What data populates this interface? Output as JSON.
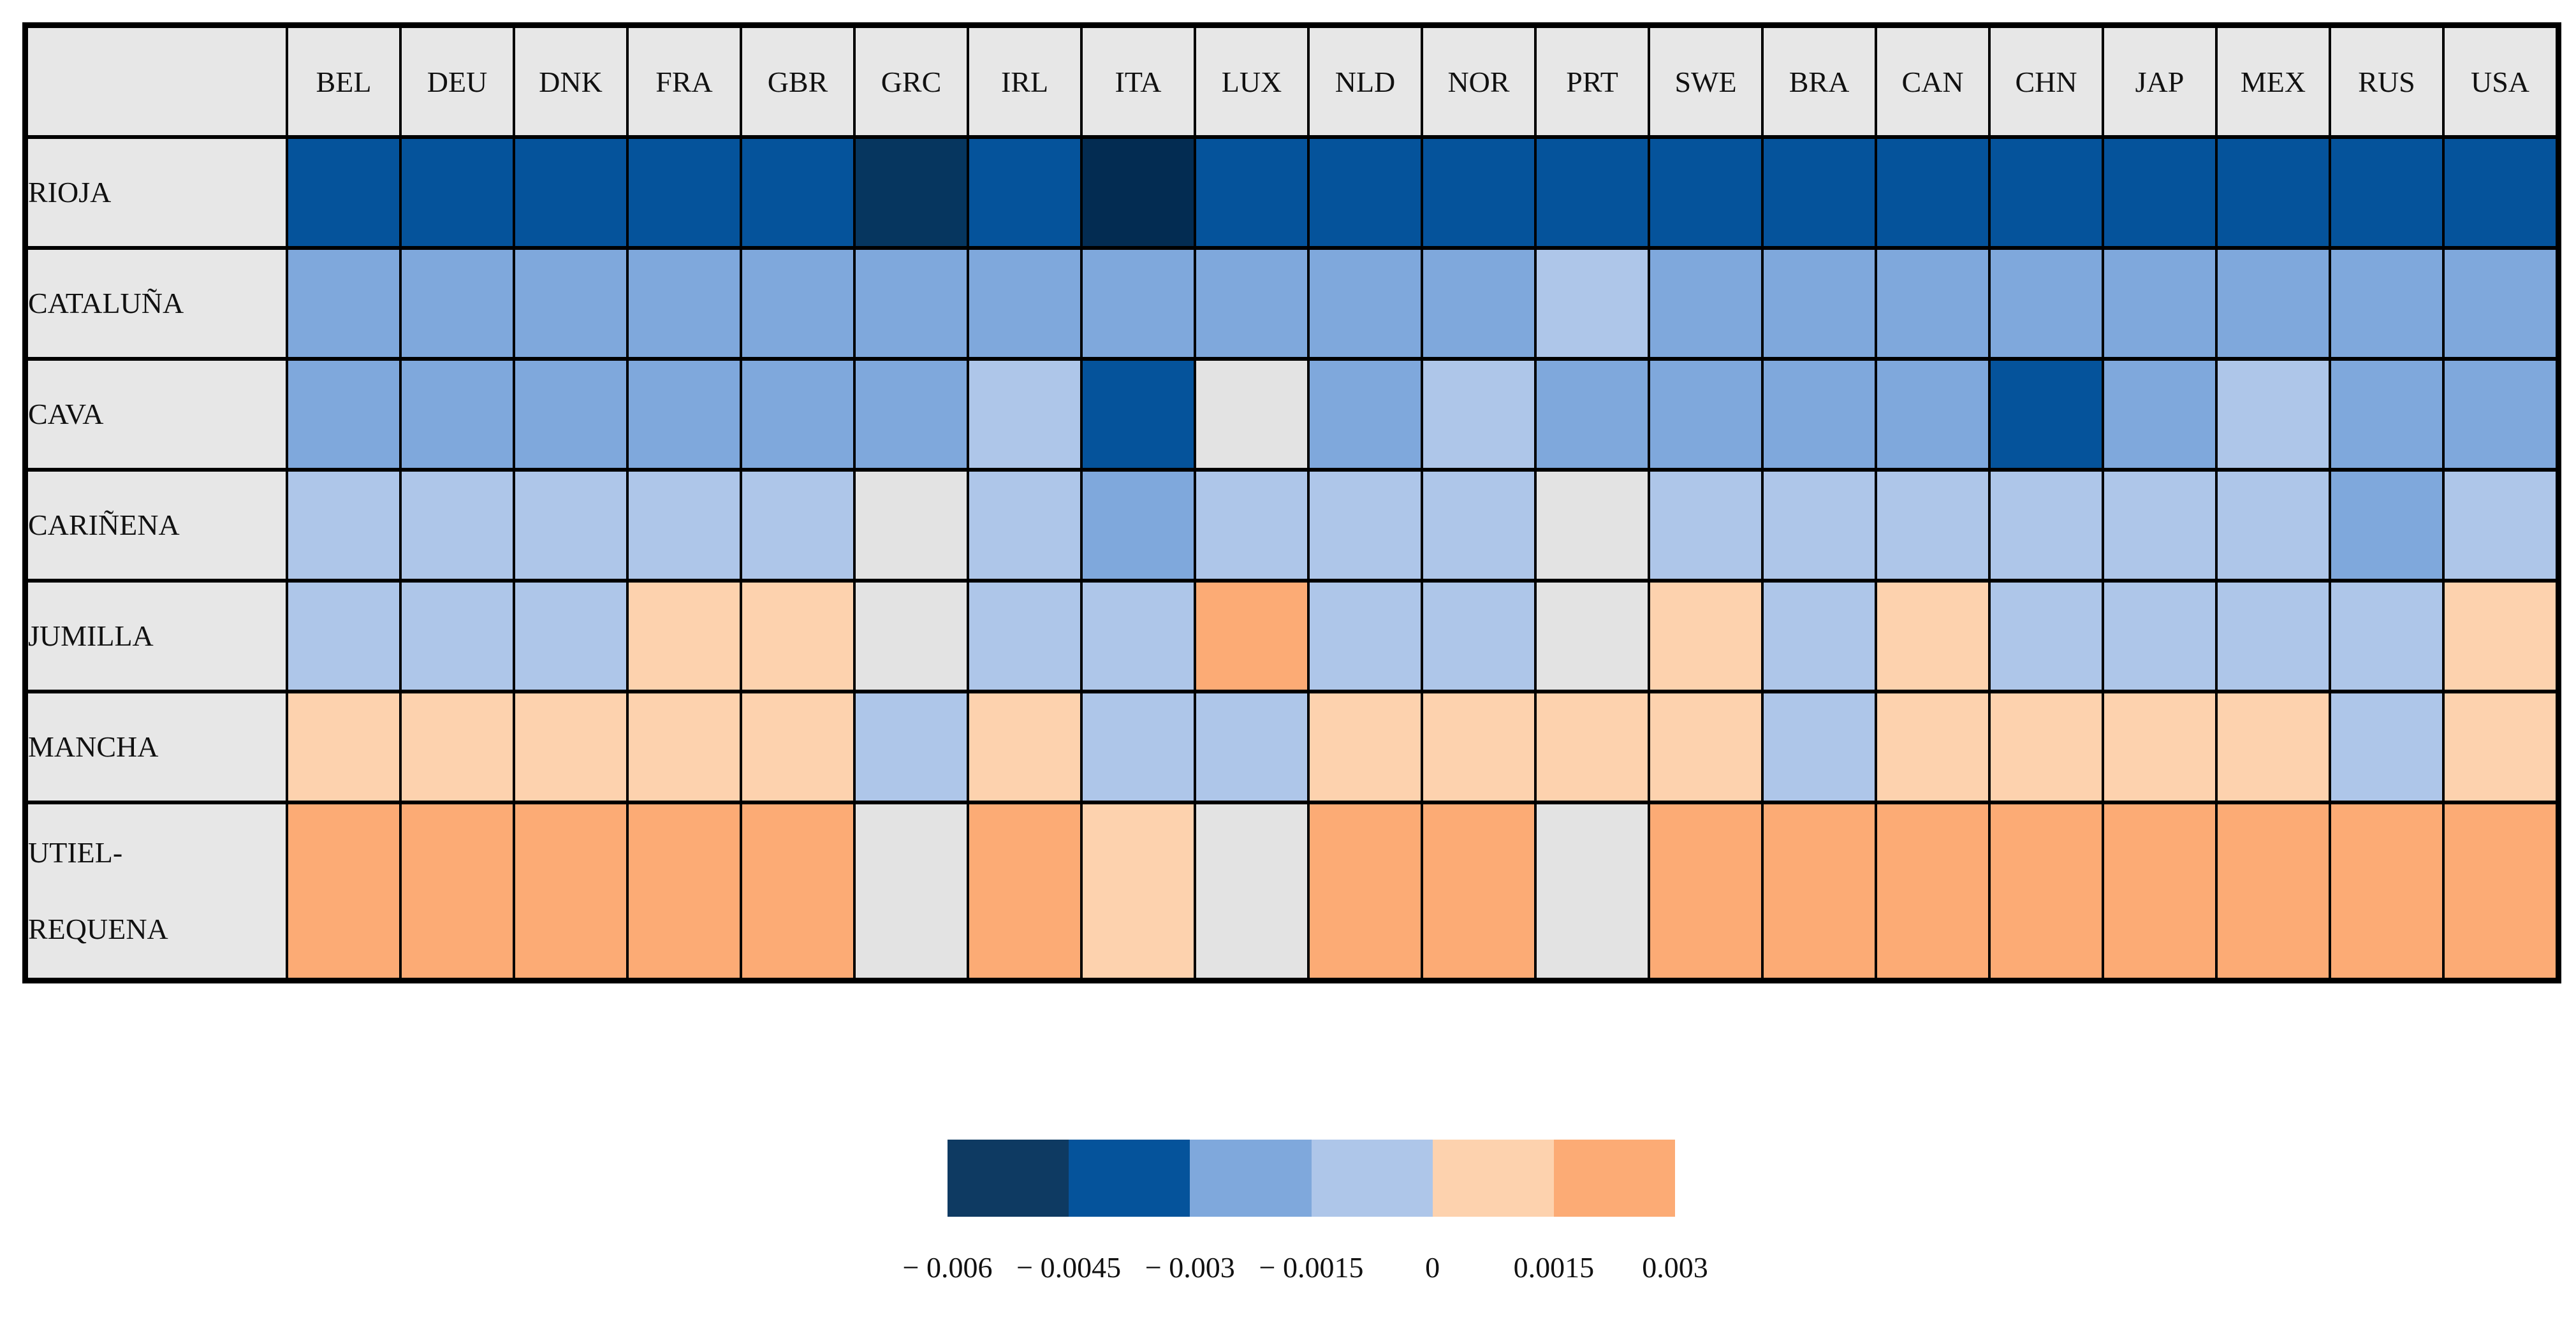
{
  "chart_data": {
    "type": "heatmap",
    "title": "",
    "x_labels": [
      "BEL",
      "DEU",
      "DNK",
      "FRA",
      "GBR",
      "GRC",
      "IRL",
      "ITA",
      "LUX",
      "NLD",
      "NOR",
      "PRT",
      "SWE",
      "BRA",
      "CAN",
      "CHN",
      "JAP",
      "MEX",
      "RUS",
      "USA"
    ],
    "y_labels": [
      "RIOJA",
      "CATALUÑA",
      "CAVA",
      "CARIÑENA",
      "JUMILLA",
      "MANCHA",
      "UTIEL-REQUENA"
    ],
    "legend_bin_edges": [
      -0.006,
      -0.0045,
      -0.003,
      -0.0015,
      0,
      0.0015,
      0.003
    ],
    "cells": [
      [
        "D",
        "D",
        "D",
        "D",
        "D",
        "N",
        "D",
        "N2",
        "D",
        "D",
        "D",
        "D",
        "D",
        "D",
        "D",
        "D",
        "D",
        "D",
        "D",
        "D"
      ],
      [
        "M",
        "M",
        "M",
        "M",
        "M",
        "M",
        "M",
        "M",
        "M",
        "M",
        "M",
        "L",
        "M",
        "M",
        "M",
        "M",
        "M",
        "M",
        "M",
        "M"
      ],
      [
        "M",
        "M",
        "M",
        "M",
        "M",
        "M",
        "L",
        "D",
        "G",
        "M",
        "L",
        "M",
        "M",
        "M",
        "M",
        "D",
        "M",
        "L",
        "M",
        "M"
      ],
      [
        "L",
        "L",
        "L",
        "L",
        "L",
        "G",
        "L",
        "M",
        "L",
        "L",
        "L",
        "G",
        "L",
        "L",
        "L",
        "L",
        "L",
        "L",
        "M",
        "L"
      ],
      [
        "L",
        "L",
        "L",
        "P",
        "P",
        "G",
        "L",
        "L",
        "O",
        "L",
        "L",
        "G",
        "P",
        "L",
        "P",
        "L",
        "L",
        "L",
        "L",
        "P"
      ],
      [
        "P",
        "P",
        "P",
        "P",
        "P",
        "L",
        "P",
        "L",
        "L",
        "P",
        "P",
        "P",
        "P",
        "L",
        "P",
        "P",
        "P",
        "P",
        "L",
        "P"
      ],
      [
        "O",
        "O",
        "O",
        "O",
        "O",
        "G",
        "O",
        "P",
        "G",
        "O",
        "O",
        "G",
        "O",
        "O",
        "O",
        "O",
        "O",
        "O",
        "O",
        "O"
      ]
    ],
    "code_meaning": {
      "N": "bin -0.006 to -0.0045 (darkest navy)",
      "N2": "bin -0.006 to -0.0045 (darkest navy, slightly darker cell)",
      "D": "bin -0.0045 to -0.003 (dark blue)",
      "M": "bin -0.003 to -0.0015 (medium blue)",
      "L": "bin -0.0015 to 0 (light blue)",
      "G": "neutral / approx 0 (gray)",
      "P": "bin 0 to 0.0015 (pale peach)",
      "O": "bin 0.0015 to 0.003 (orange)"
    }
  },
  "table": {
    "columns": [
      "BEL",
      "DEU",
      "DNK",
      "FRA",
      "GBR",
      "GRC",
      "IRL",
      "ITA",
      "LUX",
      "NLD",
      "NOR",
      "PRT",
      "SWE",
      "BRA",
      "CAN",
      "CHN",
      "JAP",
      "MEX",
      "RUS",
      "USA"
    ],
    "rows": [
      {
        "label": "RIOJA",
        "cells": [
          "D",
          "D",
          "D",
          "D",
          "D",
          "N",
          "D",
          "N2",
          "D",
          "D",
          "D",
          "D",
          "D",
          "D",
          "D",
          "D",
          "D",
          "D",
          "D",
          "D"
        ]
      },
      {
        "label": "CATALUÑA",
        "cells": [
          "M",
          "M",
          "M",
          "M",
          "M",
          "M",
          "M",
          "M",
          "M",
          "M",
          "M",
          "L",
          "M",
          "M",
          "M",
          "M",
          "M",
          "M",
          "M",
          "M"
        ]
      },
      {
        "label": "CAVA",
        "cells": [
          "M",
          "M",
          "M",
          "M",
          "M",
          "M",
          "L",
          "D",
          "G",
          "M",
          "L",
          "M",
          "M",
          "M",
          "M",
          "D",
          "M",
          "L",
          "M",
          "M"
        ]
      },
      {
        "label": "CARIÑENA",
        "cells": [
          "L",
          "L",
          "L",
          "L",
          "L",
          "G",
          "L",
          "M",
          "L",
          "L",
          "L",
          "G",
          "L",
          "L",
          "L",
          "L",
          "L",
          "L",
          "M",
          "L"
        ]
      },
      {
        "label": "JUMILLA",
        "cells": [
          "L",
          "L",
          "L",
          "P",
          "P",
          "G",
          "L",
          "L",
          "O",
          "L",
          "L",
          "G",
          "P",
          "L",
          "P",
          "L",
          "L",
          "L",
          "L",
          "P"
        ]
      },
      {
        "label": "MANCHA",
        "cells": [
          "P",
          "P",
          "P",
          "P",
          "P",
          "L",
          "P",
          "L",
          "L",
          "P",
          "P",
          "P",
          "P",
          "L",
          "P",
          "P",
          "P",
          "P",
          "L",
          "P"
        ]
      },
      {
        "label": "UTIEL-\nREQUENA",
        "cells": [
          "O",
          "O",
          "O",
          "O",
          "O",
          "G",
          "O",
          "P",
          "G",
          "O",
          "O",
          "G",
          "O",
          "O",
          "O",
          "O",
          "O",
          "O",
          "O",
          "O"
        ],
        "tall": true
      }
    ]
  },
  "palette": {
    "N": "#06365f",
    "N2": "#032c52",
    "D": "#05539b",
    "M": "#7fa8dc",
    "L": "#aec6e9",
    "G": "#e3e3e3",
    "P": "#fdd2ae",
    "O": "#fcab75"
  },
  "header_bg": "#e7e7e7",
  "legend": {
    "swatch_colors": [
      "#0e3a62",
      "#05539b",
      "#7fa8dc",
      "#aec6e9",
      "#fdd2ae",
      "#fcab75"
    ],
    "ticks": [
      "− 0.006",
      "− 0.0045",
      "− 0.003",
      "− 0.0015",
      "0",
      "0.0015",
      "0.003"
    ]
  }
}
